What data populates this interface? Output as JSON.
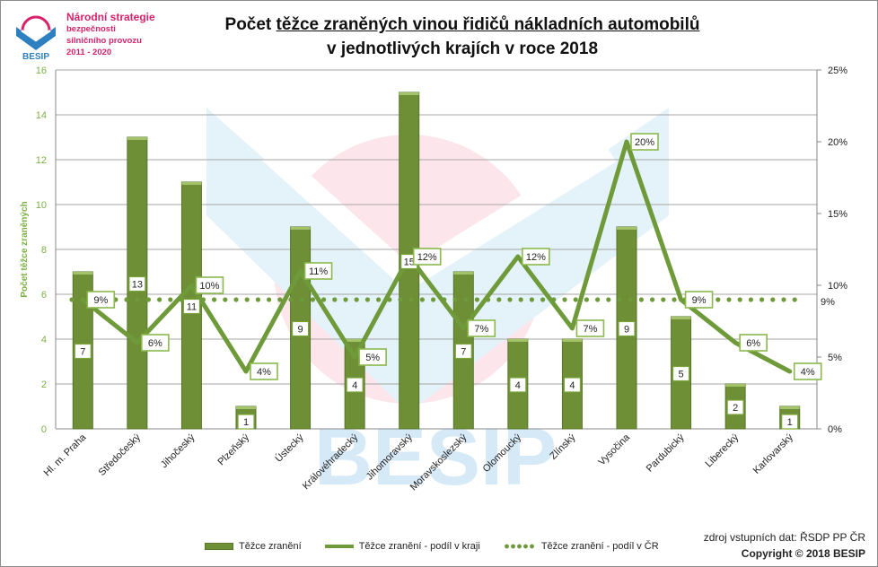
{
  "logo": {
    "line1": "Národní strategie",
    "line2": "bezpečnosti",
    "line3": "silničního provozu",
    "line4": "2011 - 2020",
    "brand": "BESIP"
  },
  "title": {
    "part1": "Počet ",
    "part2": "těžce zraněných vinou řidičů nákladních automobilů",
    "line2": "v jednotlivých krajích v roce 2018"
  },
  "watermark": "BESIP",
  "legend": {
    "bars": "Těžce zranění",
    "line": "Těžce zranění - podíl v kraji",
    "dotted": "Těžce zranění - podíl v ČR"
  },
  "source": "zdroj vstupních dat: ŘSDP PP ČR",
  "copyright": "Copyright © 2018 BESIP",
  "colors": {
    "bar": "#6e8f36",
    "line": "#6e9a3a",
    "axis_label": "#7db044",
    "logo_pink": "#d8226b",
    "logo_blue": "#2e7fc0"
  },
  "chart_data": {
    "type": "bar",
    "categories": [
      "Hl. m. Praha",
      "Středočeský",
      "Jihočeský",
      "Plzeňský",
      "Ústecký",
      "Královéhradecký",
      "Jihomoravský",
      "Moravskoslezský",
      "Olomoucký",
      "Zlínský",
      "Vysočina",
      "Pardubický",
      "Liberecký",
      "Karlovarský"
    ],
    "series": [
      {
        "name": "Těžce zranění",
        "kind": "bar",
        "axis": "left",
        "values": [
          7,
          13,
          11,
          1,
          9,
          4,
          15,
          7,
          4,
          4,
          9,
          5,
          2,
          1
        ],
        "labels": [
          "7",
          "13",
          "11",
          "1",
          "9",
          "4",
          "15",
          "7",
          "4",
          "4",
          "9",
          "5",
          "2",
          "1"
        ]
      },
      {
        "name": "Těžce zranění - podíl v kraji",
        "kind": "line",
        "axis": "right",
        "values": [
          9,
          6,
          10,
          4,
          11,
          5,
          12,
          7,
          12,
          7,
          20,
          9,
          6,
          4
        ],
        "labels": [
          "9%",
          "6%",
          "10%",
          "4%",
          "11%",
          "5%",
          "12%",
          "7%",
          "12%",
          "7%",
          "20%",
          "9%",
          "6%",
          "4%"
        ]
      },
      {
        "name": "Těžce zranění - podíl v ČR",
        "kind": "dotted",
        "axis": "right",
        "value": 9,
        "label": "9%"
      }
    ],
    "ylabel": "Počet těžce zraněných",
    "ylim": [
      0,
      16
    ],
    "yticks": [
      "0",
      "2",
      "4",
      "6",
      "8",
      "10",
      "12",
      "14",
      "16"
    ],
    "y2lim": [
      0,
      25
    ],
    "y2ticks": [
      "0%",
      "5%",
      "10%",
      "15%",
      "20%",
      "25%"
    ],
    "grid": true,
    "legend_position": "bottom"
  }
}
